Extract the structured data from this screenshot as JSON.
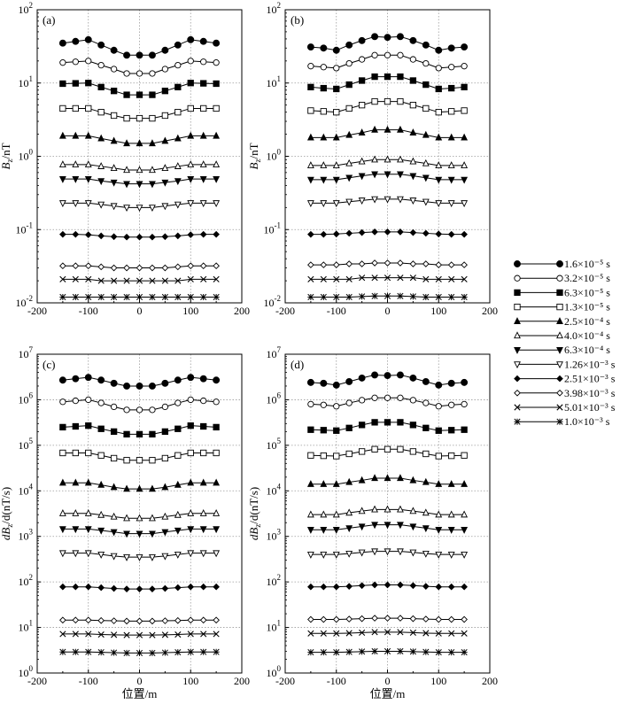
{
  "legend": [
    {
      "label": "1.6×10⁻⁵ s",
      "marker": "filled-circle"
    },
    {
      "label": "3.2×10⁻⁵ s",
      "marker": "open-circle"
    },
    {
      "label": "6.3×10⁻⁵ s",
      "marker": "filled-square"
    },
    {
      "label": "1.3×10⁻⁵ s",
      "marker": "open-square"
    },
    {
      "label": "2.5×10⁻⁴ s",
      "marker": "filled-triangle-up"
    },
    {
      "label": "4.0×10⁻⁴ s",
      "marker": "open-triangle-up"
    },
    {
      "label": "6.3×10⁻⁴ s",
      "marker": "filled-triangle-down"
    },
    {
      "label": "1.26×10⁻³ s",
      "marker": "open-triangle-down"
    },
    {
      "label": "2.51×10⁻³ s",
      "marker": "filled-diamond"
    },
    {
      "label": "3.98×10⁻³ s",
      "marker": "open-diamond"
    },
    {
      "label": "5.01×10⁻³ s",
      "marker": "x-cross"
    },
    {
      "label": "1.0×10⁻³ s",
      "marker": "asterisk"
    }
  ],
  "colors": {
    "line": "#000000",
    "grid": "#9a9a9a"
  },
  "chart_data": [
    {
      "type": "line",
      "panel_label": "(a)",
      "xlabel": "",
      "ylabel": "B_z/nT",
      "ylabel_parts": [
        "B",
        "z",
        "/nT"
      ],
      "yscale": "log",
      "xlim": [
        -200,
        200
      ],
      "ylim": [
        0.01,
        100
      ],
      "xticks": [
        "-200",
        "-100",
        "0",
        "100",
        "200"
      ],
      "yticks": [
        {
          "base": "10",
          "exp": "-2"
        },
        {
          "base": "10",
          "exp": "-1"
        },
        {
          "base": "10",
          "exp": "0"
        },
        {
          "base": "10",
          "exp": "1"
        },
        {
          "base": "10",
          "exp": "2"
        }
      ],
      "grid": true,
      "x": [
        -150,
        -125,
        -100,
        -75,
        -50,
        -25,
        0,
        25,
        50,
        75,
        100,
        125,
        150
      ],
      "series": [
        {
          "values": [
            35,
            37,
            39,
            33,
            28,
            24,
            24,
            24,
            28,
            33,
            39,
            37,
            35
          ]
        },
        {
          "values": [
            19,
            19.5,
            20,
            17.5,
            15.5,
            13.5,
            13.5,
            13.5,
            15.5,
            17.5,
            20,
            19.5,
            19
          ]
        },
        {
          "values": [
            9.8,
            9.9,
            10,
            8.8,
            7.8,
            6.9,
            6.9,
            6.9,
            7.8,
            8.8,
            10,
            9.9,
            9.8
          ]
        },
        {
          "values": [
            4.5,
            4.5,
            4.5,
            4.0,
            3.6,
            3.3,
            3.3,
            3.3,
            3.6,
            4.0,
            4.5,
            4.5,
            4.5
          ]
        },
        {
          "values": [
            1.9,
            1.9,
            1.9,
            1.75,
            1.62,
            1.5,
            1.5,
            1.5,
            1.62,
            1.75,
            1.9,
            1.9,
            1.9
          ]
        },
        {
          "values": [
            0.77,
            0.77,
            0.77,
            0.73,
            0.69,
            0.65,
            0.65,
            0.65,
            0.69,
            0.73,
            0.77,
            0.77,
            0.77
          ]
        },
        {
          "values": [
            0.49,
            0.49,
            0.49,
            0.46,
            0.44,
            0.42,
            0.42,
            0.42,
            0.44,
            0.46,
            0.49,
            0.49,
            0.49
          ]
        },
        {
          "values": [
            0.23,
            0.23,
            0.23,
            0.22,
            0.21,
            0.2,
            0.2,
            0.2,
            0.21,
            0.22,
            0.23,
            0.23,
            0.23
          ]
        },
        {
          "values": [
            0.086,
            0.086,
            0.085,
            0.082,
            0.08,
            0.079,
            0.079,
            0.079,
            0.08,
            0.082,
            0.085,
            0.086,
            0.086
          ]
        },
        {
          "values": [
            0.032,
            0.032,
            0.032,
            0.031,
            0.03,
            0.03,
            0.03,
            0.03,
            0.03,
            0.031,
            0.032,
            0.032,
            0.032
          ]
        },
        {
          "values": [
            0.021,
            0.021,
            0.021,
            0.02,
            0.02,
            0.02,
            0.02,
            0.02,
            0.02,
            0.02,
            0.021,
            0.021,
            0.021
          ]
        },
        {
          "values": [
            0.012,
            0.012,
            0.012,
            0.012,
            0.012,
            0.012,
            0.012,
            0.012,
            0.012,
            0.012,
            0.012,
            0.012,
            0.012
          ]
        }
      ]
    },
    {
      "type": "line",
      "panel_label": "(b)",
      "xlabel": "",
      "ylabel": "B_z/nT",
      "ylabel_parts": [
        "B",
        "z",
        "/nT"
      ],
      "yscale": "log",
      "xlim": [
        -200,
        200
      ],
      "ylim": [
        0.01,
        100
      ],
      "xticks": [
        "-200",
        "-100",
        "0",
        "100",
        "200"
      ],
      "yticks": [
        {
          "base": "10",
          "exp": "-2"
        },
        {
          "base": "10",
          "exp": "-1"
        },
        {
          "base": "10",
          "exp": "0"
        },
        {
          "base": "10",
          "exp": "1"
        },
        {
          "base": "10",
          "exp": "2"
        }
      ],
      "grid": true,
      "x": [
        -150,
        -125,
        -100,
        -75,
        -50,
        -25,
        0,
        25,
        50,
        75,
        100,
        125,
        150
      ],
      "series": [
        {
          "values": [
            31,
            30,
            28,
            33,
            38,
            43,
            42,
            43,
            38,
            33,
            28,
            30,
            31
          ]
        },
        {
          "values": [
            17,
            16.5,
            16,
            18.5,
            21,
            24,
            24,
            24,
            21,
            18.5,
            16,
            16.5,
            17
          ]
        },
        {
          "values": [
            8.8,
            8.5,
            8.3,
            9.5,
            10.8,
            12.2,
            12.2,
            12.2,
            10.8,
            9.5,
            8.3,
            8.5,
            8.8
          ]
        },
        {
          "values": [
            4.2,
            4.1,
            4.0,
            4.5,
            5.0,
            5.6,
            5.6,
            5.6,
            5.0,
            4.5,
            4.0,
            4.1,
            4.2
          ]
        },
        {
          "values": [
            1.8,
            1.8,
            1.8,
            1.95,
            2.1,
            2.3,
            2.3,
            2.3,
            2.1,
            1.95,
            1.8,
            1.8,
            1.8
          ]
        },
        {
          "values": [
            0.75,
            0.75,
            0.75,
            0.8,
            0.85,
            0.9,
            0.9,
            0.9,
            0.85,
            0.8,
            0.75,
            0.75,
            0.75
          ]
        },
        {
          "values": [
            0.48,
            0.48,
            0.48,
            0.51,
            0.54,
            0.57,
            0.57,
            0.57,
            0.54,
            0.51,
            0.48,
            0.48,
            0.48
          ]
        },
        {
          "values": [
            0.23,
            0.23,
            0.23,
            0.24,
            0.25,
            0.26,
            0.26,
            0.26,
            0.25,
            0.24,
            0.23,
            0.23,
            0.23
          ]
        },
        {
          "values": [
            0.086,
            0.086,
            0.087,
            0.089,
            0.091,
            0.093,
            0.093,
            0.093,
            0.091,
            0.089,
            0.087,
            0.086,
            0.086
          ]
        },
        {
          "values": [
            0.033,
            0.033,
            0.033,
            0.034,
            0.034,
            0.035,
            0.035,
            0.035,
            0.034,
            0.034,
            0.033,
            0.033,
            0.033
          ]
        },
        {
          "values": [
            0.021,
            0.021,
            0.021,
            0.021,
            0.022,
            0.022,
            0.022,
            0.022,
            0.022,
            0.021,
            0.021,
            0.021,
            0.021
          ]
        },
        {
          "values": [
            0.012,
            0.012,
            0.012,
            0.012,
            0.0122,
            0.0124,
            0.0124,
            0.0124,
            0.0122,
            0.012,
            0.012,
            0.012,
            0.012
          ]
        }
      ]
    },
    {
      "type": "line",
      "panel_label": "(c)",
      "xlabel": "位置/m",
      "ylabel": "dB_z/d(nT/s)",
      "ylabel_parts": [
        "dB",
        "z",
        "/d(nT/s)"
      ],
      "yscale": "log",
      "xlim": [
        -200,
        200
      ],
      "ylim": [
        1,
        10000000
      ],
      "xticks": [
        "-200",
        "-100",
        "0",
        "100",
        "200"
      ],
      "yticks": [
        {
          "base": "10",
          "exp": "0"
        },
        {
          "base": "10",
          "exp": "1"
        },
        {
          "base": "10",
          "exp": "2"
        },
        {
          "base": "10",
          "exp": "3"
        },
        {
          "base": "10",
          "exp": "4"
        },
        {
          "base": "10",
          "exp": "5"
        },
        {
          "base": "10",
          "exp": "6"
        },
        {
          "base": "10",
          "exp": "7"
        }
      ],
      "grid": true,
      "x": [
        -150,
        -125,
        -100,
        -75,
        -50,
        -25,
        0,
        25,
        50,
        75,
        100,
        125,
        150
      ],
      "series": [
        {
          "values": [
            2700000,
            2900000,
            3100000,
            2700000,
            2300000,
            2000000,
            2000000,
            2000000,
            2300000,
            2700000,
            3100000,
            2900000,
            2700000
          ]
        },
        {
          "values": [
            900000,
            950000,
            1000000,
            850000,
            700000,
            600000,
            600000,
            600000,
            700000,
            850000,
            1000000,
            950000,
            900000
          ]
        },
        {
          "values": [
            250000,
            260000,
            270000,
            230000,
            200000,
            175000,
            175000,
            175000,
            200000,
            230000,
            270000,
            260000,
            250000
          ]
        },
        {
          "values": [
            68000,
            68000,
            68000,
            60000,
            52000,
            47000,
            47000,
            47000,
            52000,
            60000,
            68000,
            68000,
            68000
          ]
        },
        {
          "values": [
            15000,
            15000,
            15000,
            13500,
            12000,
            11000,
            11000,
            11000,
            12000,
            13500,
            15000,
            15000,
            15000
          ]
        },
        {
          "values": [
            3200,
            3200,
            3200,
            2950,
            2700,
            2500,
            2500,
            2500,
            2700,
            2950,
            3200,
            3200,
            3200
          ]
        },
        {
          "values": [
            1450,
            1450,
            1450,
            1350,
            1250,
            1150,
            1150,
            1150,
            1250,
            1350,
            1450,
            1450,
            1450
          ]
        },
        {
          "values": [
            430,
            430,
            430,
            400,
            370,
            350,
            350,
            350,
            370,
            400,
            430,
            430,
            430
          ]
        },
        {
          "values": [
            78,
            78,
            78,
            75,
            72,
            70,
            70,
            70,
            72,
            75,
            78,
            78,
            78
          ]
        },
        {
          "values": [
            14.5,
            14.5,
            14.5,
            14.2,
            14.0,
            13.8,
            13.8,
            13.8,
            14.0,
            14.2,
            14.5,
            14.5,
            14.5
          ]
        },
        {
          "values": [
            7.2,
            7.2,
            7.2,
            7.0,
            6.9,
            6.8,
            6.8,
            6.8,
            6.9,
            7.0,
            7.2,
            7.2,
            7.2
          ]
        },
        {
          "values": [
            2.9,
            2.9,
            2.9,
            2.85,
            2.8,
            2.75,
            2.75,
            2.75,
            2.8,
            2.85,
            2.9,
            2.9,
            2.9
          ]
        }
      ]
    },
    {
      "type": "line",
      "panel_label": "(d)",
      "xlabel": "位置/m",
      "ylabel": "dB_z/d(nT/s)",
      "ylabel_parts": [
        "dB",
        "z",
        "/d(nT/s)"
      ],
      "yscale": "log",
      "xlim": [
        -200,
        200
      ],
      "ylim": [
        1,
        10000000
      ],
      "xticks": [
        "-200",
        "-100",
        "0",
        "100",
        "200"
      ],
      "yticks": [
        {
          "base": "10",
          "exp": "0"
        },
        {
          "base": "10",
          "exp": "1"
        },
        {
          "base": "10",
          "exp": "2"
        },
        {
          "base": "10",
          "exp": "3"
        },
        {
          "base": "10",
          "exp": "4"
        },
        {
          "base": "10",
          "exp": "5"
        },
        {
          "base": "10",
          "exp": "6"
        },
        {
          "base": "10",
          "exp": "7"
        }
      ],
      "grid": true,
      "x": [
        -150,
        -125,
        -100,
        -75,
        -50,
        -25,
        0,
        25,
        50,
        75,
        100,
        125,
        150
      ],
      "series": [
        {
          "values": [
            2400000,
            2300000,
            2100000,
            2500000,
            3000000,
            3500000,
            3400000,
            3500000,
            3000000,
            2500000,
            2100000,
            2300000,
            2400000
          ]
        },
        {
          "values": [
            800000,
            770000,
            720000,
            850000,
            980000,
            1100000,
            1100000,
            1100000,
            980000,
            850000,
            720000,
            770000,
            800000
          ]
        },
        {
          "values": [
            220000,
            215000,
            210000,
            240000,
            280000,
            320000,
            320000,
            320000,
            280000,
            240000,
            210000,
            215000,
            220000
          ]
        },
        {
          "values": [
            60000,
            59000,
            58000,
            65000,
            73000,
            82000,
            82000,
            82000,
            73000,
            65000,
            58000,
            59000,
            60000
          ]
        },
        {
          "values": [
            14000,
            14000,
            14000,
            15500,
            17000,
            19000,
            19000,
            19000,
            17000,
            15500,
            14000,
            14000,
            14000
          ]
        },
        {
          "values": [
            3000,
            3000,
            3000,
            3300,
            3600,
            3900,
            3900,
            3900,
            3600,
            3300,
            3000,
            3000,
            3000
          ]
        },
        {
          "values": [
            1400,
            1400,
            1400,
            1520,
            1650,
            1800,
            1800,
            1800,
            1650,
            1520,
            1400,
            1400,
            1400
          ]
        },
        {
          "values": [
            400,
            400,
            400,
            420,
            445,
            470,
            470,
            470,
            445,
            420,
            400,
            400,
            400
          ]
        },
        {
          "values": [
            78,
            78,
            78,
            80,
            83,
            86,
            86,
            86,
            83,
            80,
            78,
            78,
            78
          ]
        },
        {
          "values": [
            15,
            15,
            15,
            15.3,
            15.6,
            16,
            16,
            16,
            15.6,
            15.3,
            15,
            15,
            15
          ]
        },
        {
          "values": [
            7.4,
            7.4,
            7.4,
            7.5,
            7.7,
            7.9,
            7.9,
            7.9,
            7.7,
            7.5,
            7.4,
            7.4,
            7.4
          ]
        },
        {
          "values": [
            2.85,
            2.85,
            2.85,
            2.9,
            2.95,
            3.0,
            3.0,
            3.0,
            2.95,
            2.9,
            2.85,
            2.85,
            2.85
          ]
        }
      ]
    }
  ]
}
